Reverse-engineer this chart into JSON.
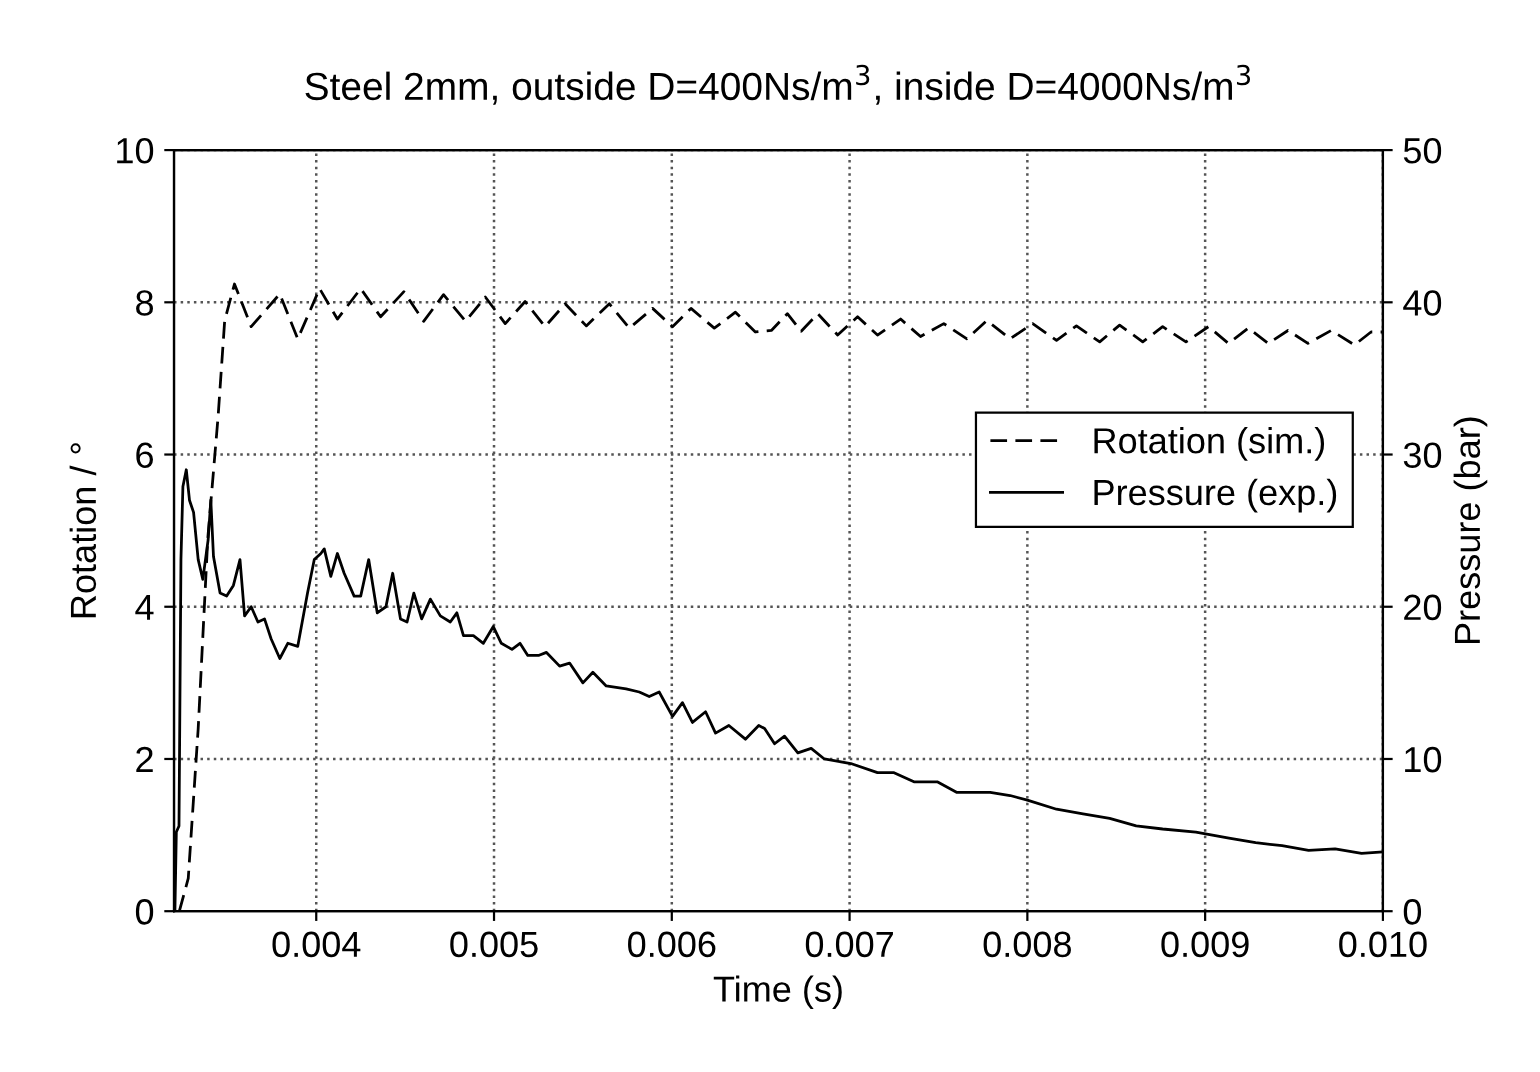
{
  "chart_data": {
    "type": "line",
    "title": "Steel 2mm, outside D=400Ns/m$^{3}$, inside D=4000Ns/m$^{3}$",
    "xlabel": "Time (s)",
    "ylabel": "Rotation / °",
    "y2label": "Pressure (bar)",
    "xlim": [
      0.0032,
      0.01
    ],
    "xticks": [
      0.004,
      0.005,
      0.006,
      0.007,
      0.008,
      0.009,
      {
        "value": 0.01,
        "label": "0.010"
      }
    ],
    "ylim": [
      0,
      10
    ],
    "yticks": [
      0,
      2,
      4,
      6,
      8,
      10
    ],
    "y2lim": [
      0,
      50
    ],
    "y2ticks": [
      0,
      10,
      20,
      30,
      40,
      50
    ],
    "grid": true,
    "legend": "right",
    "marker": "none",
    "series": [
      {
        "name": "Rotation (sim.)",
        "color": "#000000",
        "line_style": "dashed",
        "x": [
          0.00323,
          0.00328,
          0.003336,
          0.00339,
          0.003448,
          0.003485,
          0.00354,
          0.003634,
          0.003795,
          0.003896,
          0.004019,
          0.004119,
          0.00425,
          0.004362,
          0.004493,
          0.004604,
          0.004716,
          0.00484,
          0.004951,
          0.005063,
          0.005175,
          0.005287,
          0.0054,
          0.005519,
          0.005649,
          0.005761,
          0.005892,
          0.006004,
          0.006108,
          0.006239,
          0.006358,
          0.00647,
          0.00656,
          0.00665,
          0.006728,
          0.006821,
          0.006933,
          0.007045,
          0.007157,
          0.007287,
          0.007399,
          0.00753,
          0.00766,
          0.007772,
          0.007903,
          0.00803,
          0.008164,
          0.008276,
          0.008407,
          0.008519,
          0.008649,
          0.008761,
          0.008892,
          0.009019,
          0.009131,
          0.009243,
          0.009355,
          0.009466,
          0.009578,
          0.009709,
          0.00984,
          0.009933,
          0.01
        ],
        "values": [
          0,
          0.43,
          2.4,
          4.9,
          6.5,
          7.76,
          8.24,
          7.68,
          8.11,
          7.52,
          8.18,
          7.78,
          8.18,
          7.81,
          8.14,
          7.75,
          8.1,
          7.75,
          8.07,
          7.72,
          8.01,
          7.68,
          7.98,
          7.69,
          7.98,
          7.66,
          7.92,
          7.68,
          7.92,
          7.66,
          7.87,
          7.61,
          7.63,
          7.85,
          7.62,
          7.85,
          7.57,
          7.81,
          7.57,
          7.78,
          7.55,
          7.72,
          7.52,
          7.76,
          7.52,
          7.72,
          7.5,
          7.69,
          7.48,
          7.7,
          7.48,
          7.68,
          7.48,
          7.68,
          7.46,
          7.66,
          7.46,
          7.63,
          7.46,
          7.63,
          7.44,
          7.61,
          7.61
        ]
      },
      {
        "name": "Pressure (exp.)",
        "color": "#000000",
        "line_style": "solid",
        "axis": "y2",
        "x": [
          0.003205,
          0.003213,
          0.003228,
          0.003239,
          0.00325,
          0.003269,
          0.003287,
          0.00331,
          0.003336,
          0.003362,
          0.003392,
          0.003407,
          0.003422,
          0.003459,
          0.003496,
          0.003534,
          0.003571,
          0.003597,
          0.003634,
          0.003672,
          0.003709,
          0.003746,
          0.003795,
          0.00384,
          0.003896,
          0.003951,
          0.003989,
          0.004026,
          0.004045,
          0.004082,
          0.004119,
          0.004157,
          0.004213,
          0.00425,
          0.004295,
          0.004343,
          0.004392,
          0.00443,
          0.004474,
          0.004511,
          0.004549,
          0.004593,
          0.004642,
          0.004698,
          0.004754,
          0.004791,
          0.004828,
          0.004884,
          0.00494,
          0.004996,
          0.005041,
          0.005101,
          0.005146,
          0.00519,
          0.00525,
          0.005295,
          0.005369,
          0.005425,
          0.0055,
          0.005556,
          0.005631,
          0.005743,
          0.005817,
          0.005873,
          0.005929,
          0.006004,
          0.00606,
          0.006116,
          0.00619,
          0.006246,
          0.006321,
          0.006414,
          0.006489,
          0.006522,
          0.006578,
          0.006634,
          0.006709,
          0.006784,
          0.006858,
          0.007007,
          0.007157,
          0.00725,
          0.007362,
          0.007493,
          0.007604,
          0.007791,
          0.007903,
          0.008,
          0.008164,
          0.008313,
          0.008463,
          0.008612,
          0.008761,
          0.008948,
          0.009134,
          0.009284,
          0.009433,
          0.009582,
          0.009731,
          0.00988,
          0.01
        ],
        "values": [
          0,
          5.2,
          5.6,
          23.1,
          27.9,
          29.0,
          27.0,
          26.2,
          23.1,
          21.8,
          24.4,
          27.0,
          23.3,
          20.9,
          20.7,
          21.4,
          23.1,
          19.4,
          20.0,
          19.0,
          19.2,
          17.9,
          16.6,
          17.6,
          17.4,
          20.9,
          23.1,
          23.5,
          23.8,
          22.0,
          23.5,
          22.2,
          20.7,
          20.7,
          23.1,
          19.6,
          20.0,
          22.2,
          19.2,
          19.0,
          20.9,
          19.2,
          20.5,
          19.4,
          19.0,
          19.6,
          18.1,
          18.1,
          17.6,
          18.7,
          17.6,
          17.2,
          17.6,
          16.8,
          16.8,
          17.0,
          16.1,
          16.3,
          15.0,
          15.7,
          14.8,
          14.6,
          14.4,
          14.1,
          14.4,
          12.8,
          13.7,
          12.4,
          13.1,
          11.7,
          12.2,
          11.3,
          12.2,
          12.0,
          11.0,
          11.5,
          10.4,
          10.7,
          10.0,
          9.7,
          9.1,
          9.1,
          8.5,
          8.5,
          7.8,
          7.8,
          7.6,
          7.3,
          6.7,
          6.4,
          6.1,
          5.6,
          5.4,
          5.2,
          4.8,
          4.5,
          4.3,
          4.0,
          4.1,
          3.8,
          3.9
        ]
      }
    ]
  }
}
